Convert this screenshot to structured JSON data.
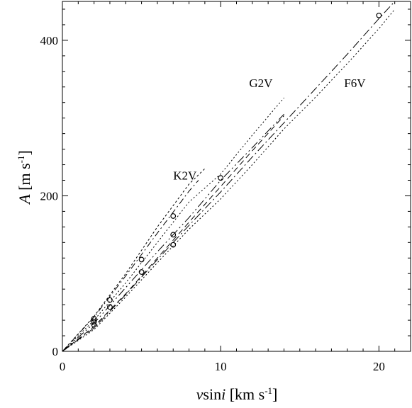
{
  "chart_data": {
    "type": "line",
    "title": "",
    "xlabel": {
      "italic": "v",
      "roman": "sin",
      "italic2": "i",
      "unit": " [km s",
      "sup": "-1",
      "close": "]"
    },
    "ylabel": {
      "italic": "A",
      "unit": " [m s",
      "sup": "-1",
      "close": "]"
    },
    "xlim": [
      0,
      22
    ],
    "ylim": [
      0,
      450
    ],
    "x_ticks": [
      0,
      10,
      20
    ],
    "y_ticks": [
      0,
      200,
      400
    ],
    "x_tick_labels": [
      "0",
      "10",
      "20"
    ],
    "y_tick_labels": [
      "0",
      "200",
      "400"
    ],
    "x_minor_step": 1,
    "y_minor_step": 20,
    "grid": false,
    "annotations": [
      {
        "text": "K2V",
        "x": 7.0,
        "y": 221
      },
      {
        "text": "G2V",
        "x": 11.8,
        "y": 340
      },
      {
        "text": "F6V",
        "x": 17.8,
        "y": 340
      }
    ],
    "series": [
      {
        "dash": "3,3",
        "x": [
          0,
          2,
          4,
          6,
          8,
          9
        ],
        "y": [
          0,
          45,
          100,
          160,
          215,
          235
        ]
      },
      {
        "dash": "9,4,2,4",
        "x": [
          0,
          2,
          4,
          6,
          8,
          8.6
        ],
        "y": [
          0,
          44,
          97,
          152,
          206,
          220
        ]
      },
      {
        "dash": "2,3",
        "x": [
          0,
          2,
          4,
          6,
          8,
          10,
          12,
          14
        ],
        "y": [
          0,
          40,
          88,
          140,
          192,
          228,
          278,
          326
        ]
      },
      {
        "dash": "12,4,2,4,2,4",
        "x": [
          0,
          2,
          4,
          6,
          8,
          10,
          12,
          14
        ],
        "y": [
          0,
          36,
          82,
          128,
          172,
          220,
          262,
          305
        ]
      },
      {
        "dash": "8,5",
        "x": [
          0,
          2,
          4,
          6,
          8,
          10,
          12,
          14
        ],
        "y": [
          0,
          32,
          74,
          120,
          166,
          212,
          258,
          303
        ]
      },
      {
        "dash": "2,3",
        "x": [
          0,
          2,
          4,
          6,
          8,
          10,
          12,
          14,
          16,
          18,
          20,
          21
        ],
        "y": [
          0,
          28,
          70,
          114,
          157,
          196,
          240,
          286,
          327,
          370,
          415,
          440
        ]
      },
      {
        "dash": "12,4,2,4",
        "x": [
          0,
          2,
          4,
          6,
          8,
          10,
          12,
          14,
          16,
          18,
          20,
          21
        ],
        "y": [
          0,
          30,
          73,
          118,
          162,
          205,
          250,
          294,
          338,
          382,
          428,
          450
        ]
      }
    ],
    "points": [
      {
        "x": 2,
        "y": 42
      },
      {
        "x": 2,
        "y": 38
      },
      {
        "x": 2,
        "y": 34
      },
      {
        "x": 3,
        "y": 66
      },
      {
        "x": 3,
        "y": 57
      },
      {
        "x": 5,
        "y": 118
      },
      {
        "x": 5,
        "y": 102
      },
      {
        "x": 7,
        "y": 174
      },
      {
        "x": 7,
        "y": 150
      },
      {
        "x": 7,
        "y": 137
      },
      {
        "x": 10,
        "y": 223
      },
      {
        "x": 20,
        "y": 432
      }
    ]
  }
}
